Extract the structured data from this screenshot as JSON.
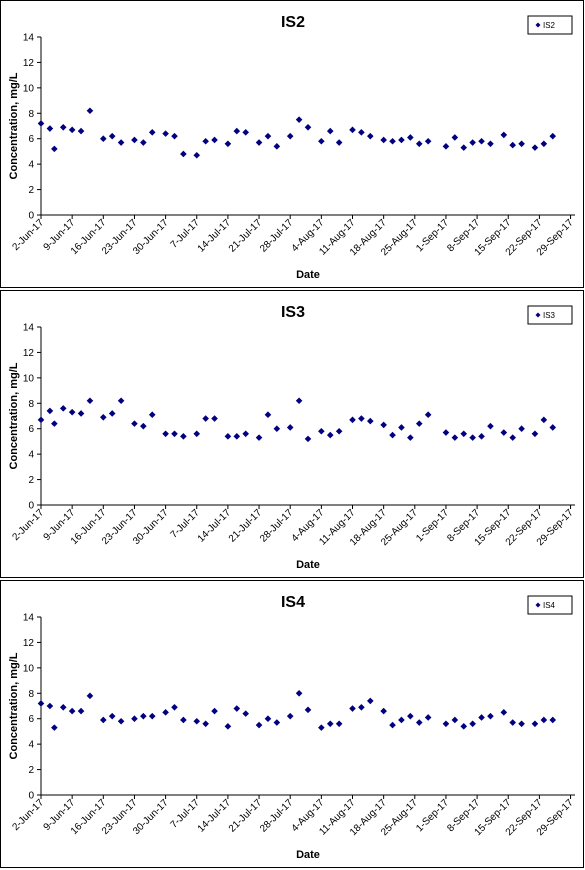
{
  "colors": {
    "series": "#000080",
    "axis": "#000000",
    "background": "#ffffff"
  },
  "x_tick_labels": [
    "2-Jun-17",
    "9-Jun-17",
    "16-Jun-17",
    "23-Jun-17",
    "30-Jun-17",
    "7-Jul-17",
    "14-Jul-17",
    "21-Jul-17",
    "28-Jul-17",
    "4-Aug-17",
    "11-Aug-17",
    "18-Aug-17",
    "25-Aug-17",
    "1-Sep-17",
    "8-Sep-17",
    "15-Sep-17",
    "22-Sep-17",
    "29-Sep-17"
  ],
  "chart_data": [
    {
      "type": "scatter",
      "title": "IS2",
      "xlabel": "Date",
      "ylabel": "Concentration, mg/L",
      "ylim": [
        0,
        14
      ],
      "yticks": [
        0,
        2,
        4,
        6,
        8,
        10,
        12,
        14
      ],
      "xlim": [
        "2-Jun-17",
        "30-Sep-17"
      ],
      "grid": false,
      "legend_position": "top-right",
      "series": [
        {
          "name": "IS2",
          "marker": "diamond",
          "color": "#000080",
          "points": [
            [
              "2-Jun-17",
              7.2
            ],
            [
              "4-Jun-17",
              6.8
            ],
            [
              "5-Jun-17",
              5.2
            ],
            [
              "7-Jun-17",
              6.9
            ],
            [
              "9-Jun-17",
              6.7
            ],
            [
              "11-Jun-17",
              6.6
            ],
            [
              "13-Jun-17",
              8.2
            ],
            [
              "16-Jun-17",
              6.0
            ],
            [
              "18-Jun-17",
              6.2
            ],
            [
              "20-Jun-17",
              5.7
            ],
            [
              "23-Jun-17",
              5.9
            ],
            [
              "25-Jun-17",
              5.7
            ],
            [
              "27-Jun-17",
              6.5
            ],
            [
              "30-Jun-17",
              6.4
            ],
            [
              "2-Jul-17",
              6.2
            ],
            [
              "4-Jul-17",
              4.8
            ],
            [
              "7-Jul-17",
              4.7
            ],
            [
              "9-Jul-17",
              5.8
            ],
            [
              "11-Jul-17",
              5.9
            ],
            [
              "14-Jul-17",
              5.6
            ],
            [
              "16-Jul-17",
              6.6
            ],
            [
              "18-Jul-17",
              6.5
            ],
            [
              "21-Jul-17",
              5.7
            ],
            [
              "23-Jul-17",
              6.2
            ],
            [
              "25-Jul-17",
              5.4
            ],
            [
              "28-Jul-17",
              6.2
            ],
            [
              "30-Jul-17",
              7.5
            ],
            [
              "1-Aug-17",
              6.9
            ],
            [
              "4-Aug-17",
              5.8
            ],
            [
              "6-Aug-17",
              6.6
            ],
            [
              "8-Aug-17",
              5.7
            ],
            [
              "11-Aug-17",
              6.7
            ],
            [
              "13-Aug-17",
              6.5
            ],
            [
              "15-Aug-17",
              6.2
            ],
            [
              "18-Aug-17",
              5.9
            ],
            [
              "20-Aug-17",
              5.8
            ],
            [
              "22-Aug-17",
              5.9
            ],
            [
              "24-Aug-17",
              6.1
            ],
            [
              "26-Aug-17",
              5.6
            ],
            [
              "28-Aug-17",
              5.8
            ],
            [
              "1-Sep-17",
              5.4
            ],
            [
              "3-Sep-17",
              6.1
            ],
            [
              "5-Sep-17",
              5.3
            ],
            [
              "7-Sep-17",
              5.7
            ],
            [
              "9-Sep-17",
              5.8
            ],
            [
              "11-Sep-17",
              5.6
            ],
            [
              "14-Sep-17",
              6.3
            ],
            [
              "16-Sep-17",
              5.5
            ],
            [
              "18-Sep-17",
              5.6
            ],
            [
              "21-Sep-17",
              5.3
            ],
            [
              "23-Sep-17",
              5.6
            ],
            [
              "25-Sep-17",
              6.2
            ]
          ]
        }
      ]
    },
    {
      "type": "scatter",
      "title": "IS3",
      "xlabel": "Date",
      "ylabel": "Concentration, mg/L",
      "ylim": [
        0,
        14
      ],
      "yticks": [
        0,
        2,
        4,
        6,
        8,
        10,
        12,
        14
      ],
      "xlim": [
        "2-Jun-17",
        "30-Sep-17"
      ],
      "grid": false,
      "legend_position": "top-right",
      "series": [
        {
          "name": "IS3",
          "marker": "diamond",
          "color": "#000080",
          "points": [
            [
              "2-Jun-17",
              6.7
            ],
            [
              "4-Jun-17",
              7.4
            ],
            [
              "5-Jun-17",
              6.4
            ],
            [
              "7-Jun-17",
              7.6
            ],
            [
              "9-Jun-17",
              7.3
            ],
            [
              "11-Jun-17",
              7.2
            ],
            [
              "13-Jun-17",
              8.2
            ],
            [
              "16-Jun-17",
              6.9
            ],
            [
              "18-Jun-17",
              7.2
            ],
            [
              "20-Jun-17",
              8.2
            ],
            [
              "23-Jun-17",
              6.4
            ],
            [
              "25-Jun-17",
              6.2
            ],
            [
              "27-Jun-17",
              7.1
            ],
            [
              "30-Jun-17",
              5.6
            ],
            [
              "2-Jul-17",
              5.6
            ],
            [
              "4-Jul-17",
              5.4
            ],
            [
              "7-Jul-17",
              5.6
            ],
            [
              "9-Jul-17",
              6.8
            ],
            [
              "11-Jul-17",
              6.8
            ],
            [
              "14-Jul-17",
              5.4
            ],
            [
              "16-Jul-17",
              5.4
            ],
            [
              "18-Jul-17",
              5.6
            ],
            [
              "21-Jul-17",
              5.3
            ],
            [
              "23-Jul-17",
              7.1
            ],
            [
              "25-Jul-17",
              6.0
            ],
            [
              "28-Jul-17",
              6.1
            ],
            [
              "30-Jul-17",
              8.2
            ],
            [
              "1-Aug-17",
              5.2
            ],
            [
              "4-Aug-17",
              5.8
            ],
            [
              "6-Aug-17",
              5.5
            ],
            [
              "8-Aug-17",
              5.8
            ],
            [
              "11-Aug-17",
              6.7
            ],
            [
              "13-Aug-17",
              6.8
            ],
            [
              "15-Aug-17",
              6.6
            ],
            [
              "18-Aug-17",
              6.3
            ],
            [
              "20-Aug-17",
              5.5
            ],
            [
              "22-Aug-17",
              6.1
            ],
            [
              "24-Aug-17",
              5.3
            ],
            [
              "26-Aug-17",
              6.4
            ],
            [
              "28-Aug-17",
              7.1
            ],
            [
              "1-Sep-17",
              5.7
            ],
            [
              "3-Sep-17",
              5.3
            ],
            [
              "5-Sep-17",
              5.6
            ],
            [
              "7-Sep-17",
              5.3
            ],
            [
              "9-Sep-17",
              5.4
            ],
            [
              "11-Sep-17",
              6.2
            ],
            [
              "14-Sep-17",
              5.7
            ],
            [
              "16-Sep-17",
              5.3
            ],
            [
              "18-Sep-17",
              6.0
            ],
            [
              "21-Sep-17",
              5.6
            ],
            [
              "23-Sep-17",
              6.7
            ],
            [
              "25-Sep-17",
              6.1
            ]
          ]
        }
      ]
    },
    {
      "type": "scatter",
      "title": "IS4",
      "xlabel": "Date",
      "ylabel": "Concentration, mg/L",
      "ylim": [
        0,
        14
      ],
      "yticks": [
        0,
        2,
        4,
        6,
        8,
        10,
        12,
        14
      ],
      "xlim": [
        "2-Jun-17",
        "30-Sep-17"
      ],
      "grid": false,
      "legend_position": "top-right",
      "series": [
        {
          "name": "IS4",
          "marker": "diamond",
          "color": "#000080",
          "points": [
            [
              "2-Jun-17",
              7.2
            ],
            [
              "4-Jun-17",
              7.0
            ],
            [
              "5-Jun-17",
              5.3
            ],
            [
              "7-Jun-17",
              6.9
            ],
            [
              "9-Jun-17",
              6.6
            ],
            [
              "11-Jun-17",
              6.6
            ],
            [
              "13-Jun-17",
              7.8
            ],
            [
              "16-Jun-17",
              5.9
            ],
            [
              "18-Jun-17",
              6.2
            ],
            [
              "20-Jun-17",
              5.8
            ],
            [
              "23-Jun-17",
              6.0
            ],
            [
              "25-Jun-17",
              6.2
            ],
            [
              "27-Jun-17",
              6.2
            ],
            [
              "30-Jun-17",
              6.5
            ],
            [
              "2-Jul-17",
              6.9
            ],
            [
              "4-Jul-17",
              5.9
            ],
            [
              "7-Jul-17",
              5.8
            ],
            [
              "9-Jul-17",
              5.6
            ],
            [
              "11-Jul-17",
              6.6
            ],
            [
              "14-Jul-17",
              5.4
            ],
            [
              "16-Jul-17",
              6.8
            ],
            [
              "18-Jul-17",
              6.4
            ],
            [
              "21-Jul-17",
              5.5
            ],
            [
              "23-Jul-17",
              6.0
            ],
            [
              "25-Jul-17",
              5.7
            ],
            [
              "28-Jul-17",
              6.2
            ],
            [
              "30-Jul-17",
              8.0
            ],
            [
              "1-Aug-17",
              6.7
            ],
            [
              "4-Aug-17",
              5.3
            ],
            [
              "6-Aug-17",
              5.6
            ],
            [
              "8-Aug-17",
              5.6
            ],
            [
              "11-Aug-17",
              6.8
            ],
            [
              "13-Aug-17",
              6.9
            ],
            [
              "15-Aug-17",
              7.4
            ],
            [
              "18-Aug-17",
              6.6
            ],
            [
              "20-Aug-17",
              5.5
            ],
            [
              "22-Aug-17",
              5.9
            ],
            [
              "24-Aug-17",
              6.2
            ],
            [
              "26-Aug-17",
              5.7
            ],
            [
              "28-Aug-17",
              6.1
            ],
            [
              "1-Sep-17",
              5.6
            ],
            [
              "3-Sep-17",
              5.9
            ],
            [
              "5-Sep-17",
              5.4
            ],
            [
              "7-Sep-17",
              5.6
            ],
            [
              "9-Sep-17",
              6.1
            ],
            [
              "11-Sep-17",
              6.2
            ],
            [
              "14-Sep-17",
              6.5
            ],
            [
              "16-Sep-17",
              5.7
            ],
            [
              "18-Sep-17",
              5.6
            ],
            [
              "21-Sep-17",
              5.6
            ],
            [
              "23-Sep-17",
              5.9
            ],
            [
              "25-Sep-17",
              5.9
            ]
          ]
        }
      ]
    }
  ]
}
